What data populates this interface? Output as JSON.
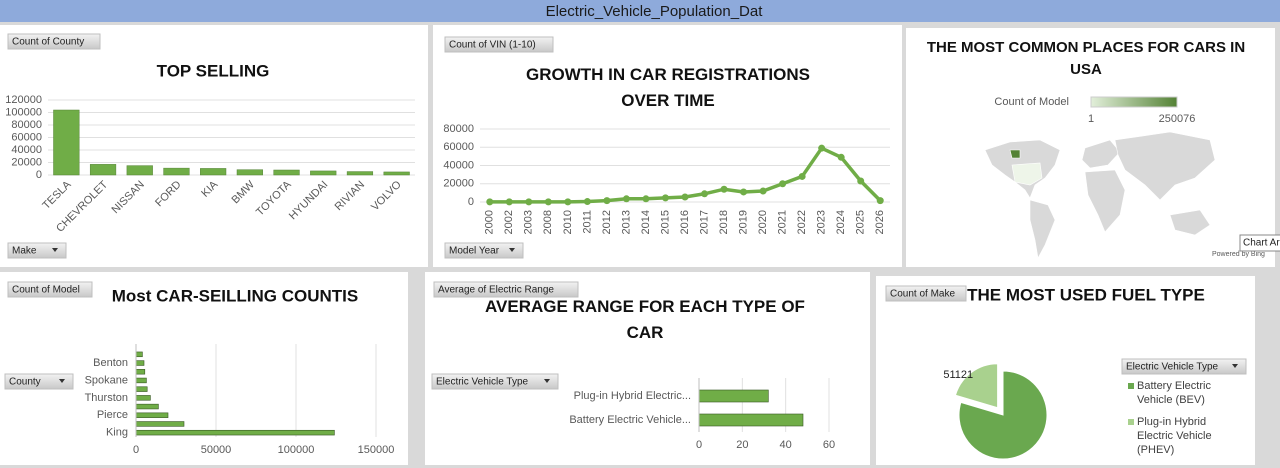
{
  "header": {
    "title": "Electric_Vehicle_Population_Dat"
  },
  "chart_data": [
    {
      "type": "bar",
      "title": "TOP SELLING",
      "buttons": [
        "Count of County",
        "Make"
      ],
      "categories": [
        "TESLA",
        "CHEVROLET",
        "NISSAN",
        "FORD",
        "KIA",
        "BMW",
        "TOYOTA",
        "HYUNDAI",
        "RIVIAN",
        "VOLVO"
      ],
      "values": [
        104000,
        17000,
        15000,
        11000,
        10500,
        8500,
        8000,
        6500,
        5500,
        4900
      ],
      "color": "#70ad47",
      "ylim": [
        0,
        120000
      ],
      "yticks": [
        0,
        20000,
        40000,
        60000,
        80000,
        100000,
        120000
      ],
      "grid": true
    },
    {
      "type": "line",
      "title": "GROWTH IN CAR REGISTRATIONS OVER TIME",
      "buttons": [
        "Count of VIN (1-10)",
        "Model Year"
      ],
      "categories": [
        "2000",
        "2002",
        "2003",
        "2008",
        "2010",
        "2011",
        "2012",
        "2013",
        "2014",
        "2015",
        "2016",
        "2017",
        "2018",
        "2019",
        "2020",
        "2021",
        "2022",
        "2023",
        "2024",
        "2025",
        "2026"
      ],
      "values": [
        100,
        100,
        100,
        100,
        100,
        500,
        1500,
        3500,
        3500,
        4500,
        5500,
        9000,
        14000,
        11000,
        12000,
        20000,
        28000,
        59000,
        49000,
        23000,
        1500
      ],
      "color": "#70ad47",
      "ylim": [
        0,
        80000
      ],
      "yticks": [
        0,
        20000,
        40000,
        60000,
        80000
      ],
      "grid": true
    },
    {
      "type": "map",
      "title": "THE MOST COMMON PLACES FOR CARS IN USA",
      "legend_title": "Count of Model",
      "legend_min": 1,
      "legend_max": 250076,
      "color": "#548235",
      "credit": "Powered by Bing",
      "tooltip": "Chart Ar"
    },
    {
      "type": "barh",
      "title": "Most CAR-SEILLING COUNTIS",
      "buttons": [
        "Count of Model",
        "County"
      ],
      "categories": [
        "King",
        null,
        "Pierce",
        null,
        "Thurston",
        null,
        "Spokane",
        null,
        "Benton",
        null
      ],
      "values": [
        124000,
        30000,
        20000,
        14000,
        9000,
        7000,
        6500,
        5500,
        5000,
        4000
      ],
      "color": "#70ad47",
      "xlim": [
        0,
        150000
      ],
      "xticks": [
        0,
        50000,
        100000,
        150000
      ],
      "grid": true
    },
    {
      "type": "barh",
      "title": "AVERAGE RANGE FOR EACH TYPE OF CAR",
      "buttons": [
        "Average of Electric Range",
        "Electric Vehicle Type"
      ],
      "categories": [
        "Battery Electric Vehicle...",
        "Plug-in Hybrid Electric..."
      ],
      "values": [
        48,
        32
      ],
      "color": "#70ad47",
      "xlim": [
        0,
        60
      ],
      "xticks": [
        0,
        20,
        40,
        60
      ],
      "grid": true
    },
    {
      "type": "pie",
      "title": "THE MOST USED FUEL TYPE",
      "buttons": [
        "Count of Make",
        "Electric Vehicle Type"
      ],
      "series": [
        {
          "name": "Battery Electric Vehicle (BEV)",
          "color": "#6aa84f",
          "value": 199538
        },
        {
          "name": "Plug-in Hybrid Electric Vehicle (PHEV)",
          "color": "#a9d18e",
          "value": 51121
        }
      ],
      "legend": "right"
    }
  ]
}
